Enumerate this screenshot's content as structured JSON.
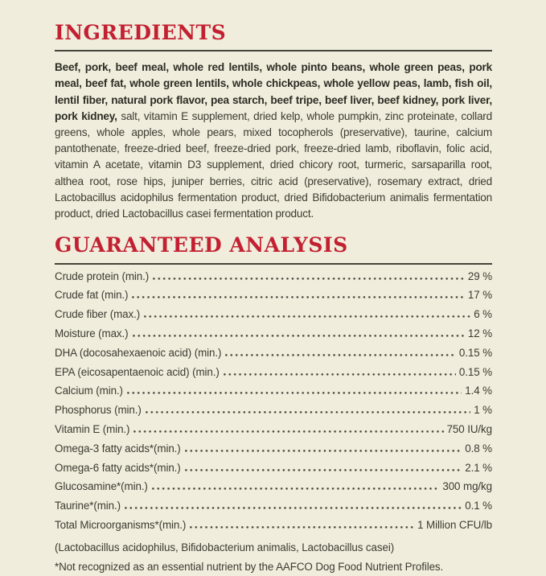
{
  "page": {
    "background_color": "#f0eddc",
    "accent_red": "#c32031",
    "rule_color": "#45443a",
    "text_color": "#3c3b30"
  },
  "ingredients": {
    "title": "INGREDIENTS",
    "bold_part": "Beef, pork, beef meal, whole red lentils, whole pinto beans, whole green peas, pork meal, beef fat, whole green lentils, whole chickpeas, whole yellow peas, lamb, fish oil, lentil fiber, natural pork flavor, pea starch, beef tripe, beef liver, beef kidney, pork liver, pork kidney, ",
    "regular_part": "salt, vitamin E supplement, dried kelp, whole pumpkin, zinc proteinate, collard greens, whole apples, whole pears, mixed tocopherols (preservative), taurine, calcium pantothenate, freeze-dried beef, freeze-dried pork, freeze-dried lamb, riboflavin, folic acid, vitamin A acetate, vitamin D3 supplement, dried chicory root, turmeric, sarsaparilla root, althea root, rose hips, juniper berries, citric acid (preservative), rosemary extract, dried Lactobacillus acidophilus fermentation product, dried Bifidobacterium animalis fermentation product, dried Lactobacillus casei fermentation product."
  },
  "analysis": {
    "title": "GUARANTEED ANALYSIS",
    "rows": [
      {
        "label": "Crude protein (min.)",
        "value": "29 %"
      },
      {
        "label": "Crude fat (min.)",
        "value": "17 %"
      },
      {
        "label": "Crude fiber (max.)",
        "value": "6 %"
      },
      {
        "label": "Moisture (max.)",
        "value": "12 %"
      },
      {
        "label": "DHA (docosahexaenoic acid) (min.)",
        "value": "0.15 %"
      },
      {
        "label": "EPA (eicosapentaenoic acid) (min.)",
        "value": "0.15 %"
      },
      {
        "label": "Calcium (min.)",
        "value": "1.4 %"
      },
      {
        "label": "Phosphorus (min.)",
        "value": "1 %"
      },
      {
        "label": "Vitamin E (min.)",
        "value": "750 IU/kg"
      },
      {
        "label": "Omega-3 fatty acids*(min.)",
        "value": "0.8 %"
      },
      {
        "label": "Omega-6 fatty acids*(min.)",
        "value": "2.1 %"
      },
      {
        "label": "Glucosamine*(min.)",
        "value": "300 mg/kg"
      },
      {
        "label": "Taurine*(min.)",
        "value": "0.1 %"
      },
      {
        "label": "Total Microorganisms*(min.)",
        "value": "1 Million CFU/lb"
      }
    ],
    "subnote": "(Lactobacillus acidophilus, Bifidobacterium animalis, Lactobacillus casei)",
    "footnote": "*Not recognized as an essential nutrient by the AAFCO Dog Food Nutrient Profiles."
  }
}
